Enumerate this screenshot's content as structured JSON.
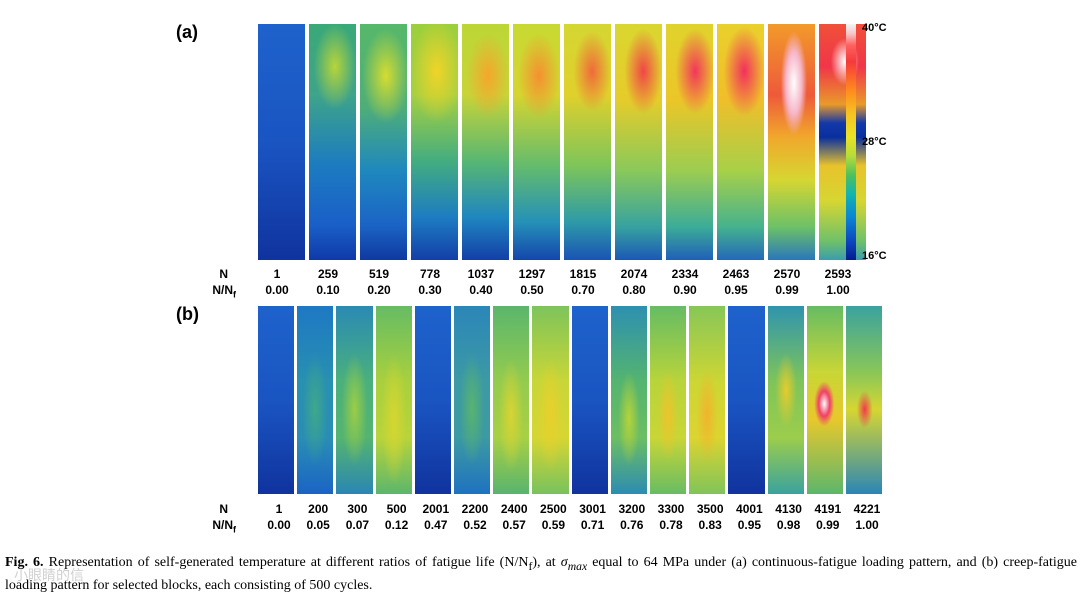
{
  "panel_a": {
    "label": "(a)",
    "n_row_label": "N",
    "ratio_row_label": "N/N_f",
    "n_values": [
      "1",
      "259",
      "519",
      "778",
      "1037",
      "1297",
      "1815",
      "2074",
      "2334",
      "2463",
      "2570",
      "2593"
    ],
    "ratio_values": [
      "0.00",
      "0.10",
      "0.20",
      "0.30",
      "0.40",
      "0.50",
      "0.70",
      "0.80",
      "0.90",
      "0.95",
      "0.99",
      "1.00"
    ]
  },
  "panel_b": {
    "label": "(b)",
    "n_row_label": "N",
    "ratio_row_label": "N/N_f",
    "n_values": [
      "1",
      "200",
      "300",
      "500",
      "2001",
      "2200",
      "2400",
      "2500",
      "3001",
      "3200",
      "3300",
      "3500",
      "4001",
      "4130",
      "4191",
      "4221"
    ],
    "ratio_values": [
      "0.00",
      "0.05",
      "0.07",
      "0.12",
      "0.47",
      "0.52",
      "0.57",
      "0.59",
      "0.71",
      "0.76",
      "0.78",
      "0.83",
      "0.95",
      "0.98",
      "0.99",
      "1.00"
    ]
  },
  "colorbar": {
    "max_label": "40°C",
    "mid_label": "28°C",
    "min_label": "16°C"
  },
  "caption": {
    "fig_label": "Fig. 6.",
    "text_1": " Representation of self-generated temperature at different ratios of fatigue life (N/N",
    "sub_f": "f",
    "text_2": "), at ",
    "sigma": "σ",
    "sub_max": "max",
    "text_3": " equal to 64 MPa under (a) continuous-fatigue loading pattern, and (b) creep-fatigue loading pattern for selected blocks, each consisting of 500 cycles."
  },
  "watermark": "小眼睛的信"
}
